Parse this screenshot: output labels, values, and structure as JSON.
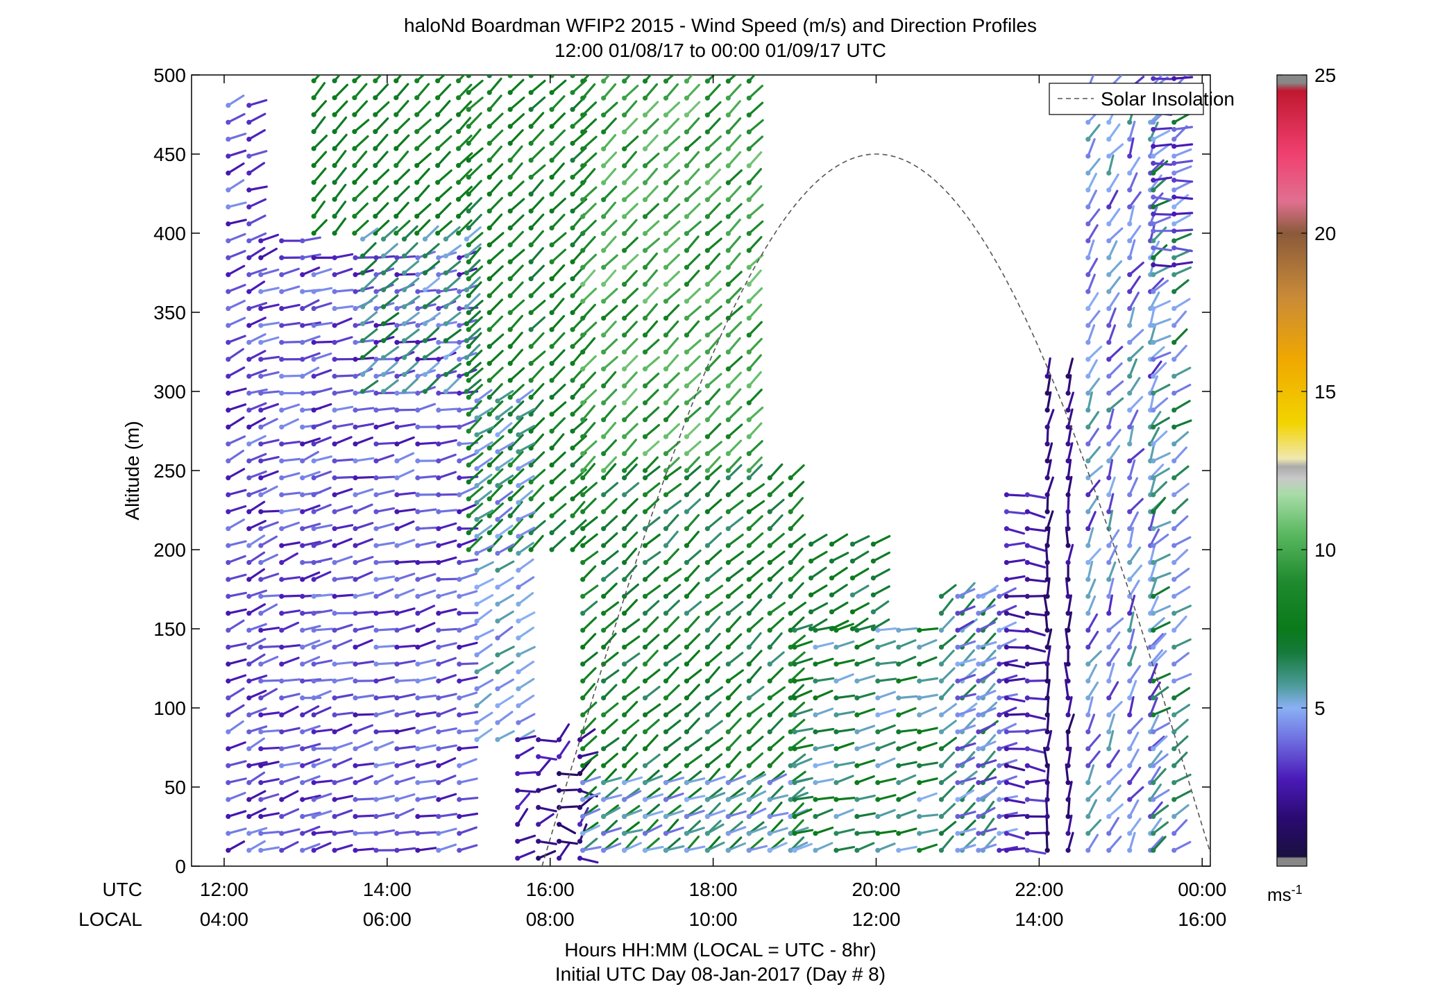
{
  "chart_data": {
    "type": "wind-barb-profile",
    "title": "haloNd Boardman WFIP2 2015 - Wind Speed (m/s) and Direction Profiles",
    "subtitle": "12:00 01/08/17 to 00:00 01/09/17  UTC",
    "ylabel": "Altitude (m)",
    "xlabel": "Hours HH:MM  (LOCAL = UTC - 8hr)",
    "xlabel2": "Initial UTC Day 08-Jan-2017 (Day # 8)",
    "x_row_labels": [
      "UTC",
      "LOCAL"
    ],
    "xlim": [
      11.6,
      24.1
    ],
    "ylim": [
      0,
      500
    ],
    "yticks": [
      0,
      50,
      100,
      150,
      200,
      250,
      300,
      350,
      400,
      450,
      500
    ],
    "xticks": [
      12,
      14,
      16,
      18,
      20,
      22,
      24
    ],
    "xtick_labels_utc": [
      "12:00",
      "14:00",
      "16:00",
      "18:00",
      "20:00",
      "22:00",
      "00:00"
    ],
    "xtick_labels_local": [
      "04:00",
      "06:00",
      "08:00",
      "10:00",
      "12:00",
      "14:00",
      "16:00"
    ],
    "legend": {
      "label": "Solar Insolation",
      "position": "top-right"
    },
    "colorbar": {
      "unit": "ms-1",
      "range": [
        0,
        25
      ],
      "ticks": [
        5,
        10,
        15,
        20,
        25
      ],
      "tick_labels": [
        "5",
        "10",
        "15",
        "20",
        "25"
      ]
    },
    "solar_insolation": {
      "start": 15.9,
      "peak": 20.0,
      "end": 24.15,
      "peak_altitude": 450
    },
    "regions": [
      {
        "t": [
          12.05,
          12.4
        ],
        "h": [
          10,
          490
        ],
        "speed": [
          2.5,
          4.5
        ],
        "dir": [
          235,
          260
        ]
      },
      {
        "t": [
          12.45,
          13.2
        ],
        "h": [
          10,
          400
        ],
        "speed": [
          2.5,
          4.5
        ],
        "dir": [
          240,
          270
        ]
      },
      {
        "t": [
          13.1,
          15.1
        ],
        "h": [
          10,
          390
        ],
        "speed": [
          2.5,
          4.5
        ],
        "dir": [
          245,
          270
        ]
      },
      {
        "t": [
          13.1,
          13.6
        ],
        "h": [
          400,
          500
        ],
        "speed": [
          7,
          8
        ],
        "dir": [
          215,
          225
        ]
      },
      {
        "t": [
          13.6,
          15.0
        ],
        "h": [
          400,
          500
        ],
        "speed": [
          7,
          8.5
        ],
        "dir": [
          220,
          230
        ]
      },
      {
        "t": [
          13.7,
          15.0
        ],
        "h": [
          300,
          400
        ],
        "speed": [
          5,
          7
        ],
        "dir": [
          225,
          235
        ]
      },
      {
        "t": [
          15.0,
          16.4
        ],
        "h": [
          200,
          500
        ],
        "speed": [
          6.5,
          9
        ],
        "dir": [
          220,
          230
        ]
      },
      {
        "t": [
          15.1,
          15.7
        ],
        "h": [
          80,
          300
        ],
        "speed": [
          4,
          6
        ],
        "dir": [
          230,
          245
        ]
      },
      {
        "t": [
          15.6,
          16.4
        ],
        "h": [
          5,
          90
        ],
        "speed": [
          1,
          3
        ],
        "dir": [
          200,
          300
        ]
      },
      {
        "t": [
          16.4,
          18.5
        ],
        "h": [
          250,
          500
        ],
        "speed": [
          8,
          11
        ],
        "dir": [
          220,
          230
        ]
      },
      {
        "t": [
          16.4,
          19.0
        ],
        "h": [
          10,
          250
        ],
        "speed": [
          6,
          9
        ],
        "dir": [
          220,
          235
        ]
      },
      {
        "t": [
          16.4,
          19.0
        ],
        "h": [
          10,
          60
        ],
        "speed": [
          4,
          6
        ],
        "dir": [
          240,
          260
        ]
      },
      {
        "t": [
          19.0,
          20.7
        ],
        "h": [
          10,
          150
        ],
        "speed": [
          5,
          8
        ],
        "dir": [
          245,
          265
        ]
      },
      {
        "t": [
          19.2,
          20.1
        ],
        "h": [
          150,
          210
        ],
        "speed": [
          6,
          8
        ],
        "dir": [
          235,
          245
        ]
      },
      {
        "t": [
          20.8,
          21.4
        ],
        "h": [
          10,
          180
        ],
        "speed": [
          5,
          7
        ],
        "dir": [
          215,
          235
        ]
      },
      {
        "t": [
          21.0,
          21.6
        ],
        "h": [
          10,
          180
        ],
        "speed": [
          3,
          5
        ],
        "dir": [
          240,
          260
        ]
      },
      {
        "t": [
          21.6,
          22.1
        ],
        "h": [
          10,
          240
        ],
        "speed": [
          2,
          3.5
        ],
        "dir": [
          260,
          290
        ]
      },
      {
        "t": [
          22.1,
          22.6
        ],
        "h": [
          10,
          320
        ],
        "speed": [
          1,
          2.5
        ],
        "dir": [
          170,
          200
        ]
      },
      {
        "t": [
          22.6,
          23.4
        ],
        "h": [
          10,
          500
        ],
        "speed": [
          3,
          6
        ],
        "dir": [
          190,
          230
        ]
      },
      {
        "t": [
          23.4,
          23.9
        ],
        "h": [
          10,
          500
        ],
        "speed": [
          4,
          7
        ],
        "dir": [
          220,
          250
        ]
      },
      {
        "t": [
          23.4,
          23.9
        ],
        "h": [
          380,
          500
        ],
        "speed": [
          2.5,
          4
        ],
        "dir": [
          260,
          280
        ]
      }
    ]
  }
}
